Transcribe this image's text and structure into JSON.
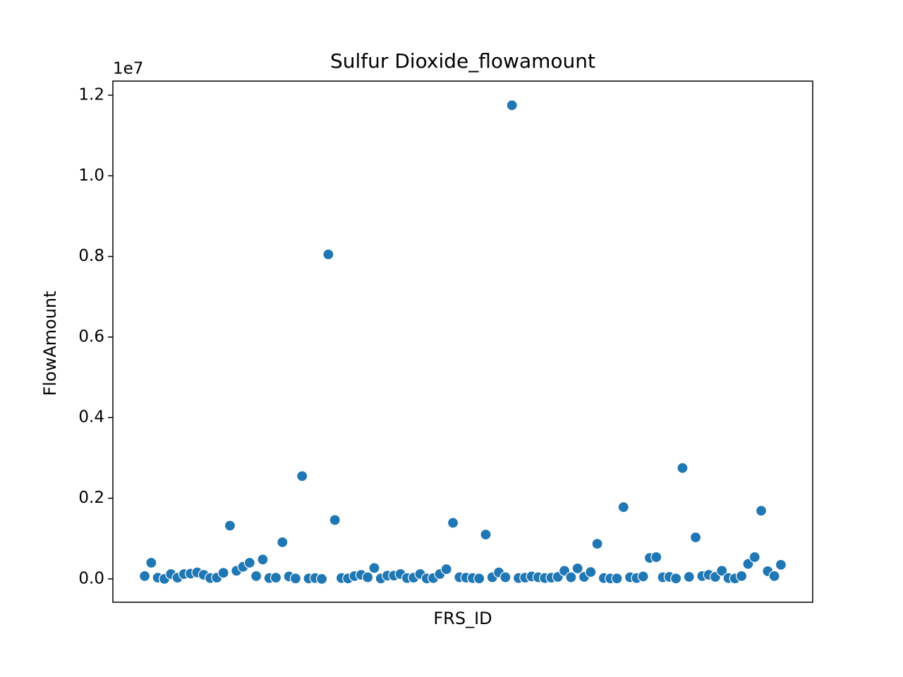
{
  "chart_data": {
    "type": "scatter",
    "title": "Sulfur Dioxide_flowamount",
    "x_label": "FRS_ID",
    "y_label": "FlowAmount",
    "y_offset_label": "1e7",
    "categories": [
      null,
      null,
      null,
      null,
      null,
      null,
      null,
      null,
      null,
      null,
      null,
      null,
      null,
      null,
      null,
      null,
      null,
      null,
      null,
      null,
      null,
      null,
      null,
      null,
      null,
      null,
      null,
      null,
      null,
      null,
      null,
      null,
      null,
      null,
      null,
      null,
      null,
      null,
      null,
      null,
      null,
      null,
      null,
      null,
      null,
      null,
      null,
      null,
      null,
      null,
      null,
      null,
      null,
      null,
      null,
      null,
      null,
      null,
      null,
      null,
      null,
      null,
      null,
      null,
      null,
      null,
      null,
      null,
      null,
      null,
      null,
      null,
      null,
      null,
      null,
      null,
      null,
      null,
      null,
      null,
      null,
      null,
      null,
      null,
      null,
      null,
      null,
      null,
      null,
      null,
      null,
      null,
      null,
      null,
      null,
      null,
      null,
      null
    ],
    "values": [
      0.007,
      0.04,
      0.003,
      0.0,
      0.012,
      0.003,
      0.012,
      0.013,
      0.016,
      0.01,
      0.002,
      0.003,
      0.015,
      0.132,
      0.02,
      0.03,
      0.04,
      0.007,
      0.048,
      0.002,
      0.003,
      0.091,
      0.006,
      0.001,
      0.255,
      0.001,
      0.002,
      0.0,
      0.805,
      0.146,
      0.002,
      0.001,
      0.007,
      0.01,
      0.004,
      0.027,
      0.001,
      0.008,
      0.008,
      0.012,
      0.002,
      0.003,
      0.012,
      0.001,
      0.002,
      0.012,
      0.024,
      0.139,
      0.004,
      0.003,
      0.002,
      0.001,
      0.11,
      0.004,
      0.016,
      0.004,
      1.175,
      0.002,
      0.003,
      0.006,
      0.004,
      0.002,
      0.003,
      0.005,
      0.02,
      0.004,
      0.026,
      0.005,
      0.017,
      0.087,
      0.002,
      0.001,
      0.001,
      0.178,
      0.004,
      0.002,
      0.006,
      0.052,
      0.054,
      0.004,
      0.005,
      0.001,
      0.275,
      0.005,
      0.103,
      0.007,
      0.01,
      0.005,
      0.02,
      0.002,
      0.001,
      0.007,
      0.037,
      0.054,
      0.169,
      0.019,
      0.007,
      0.035
    ],
    "color": "#1f77b4",
    "ylim": [
      -0.058,
      1.235
    ],
    "yticks": [
      {
        "value": 0,
        "label": "0.0"
      },
      {
        "value": 0.2,
        "label": "0.2"
      },
      {
        "value": 0.4,
        "label": "0.4"
      },
      {
        "value": 0.6,
        "label": "0.6"
      },
      {
        "value": 0.8,
        "label": "0.8"
      },
      {
        "value": 1.0,
        "label": "1.0"
      },
      {
        "value": 1.2,
        "label": "1.2"
      }
    ],
    "grid": false
  }
}
